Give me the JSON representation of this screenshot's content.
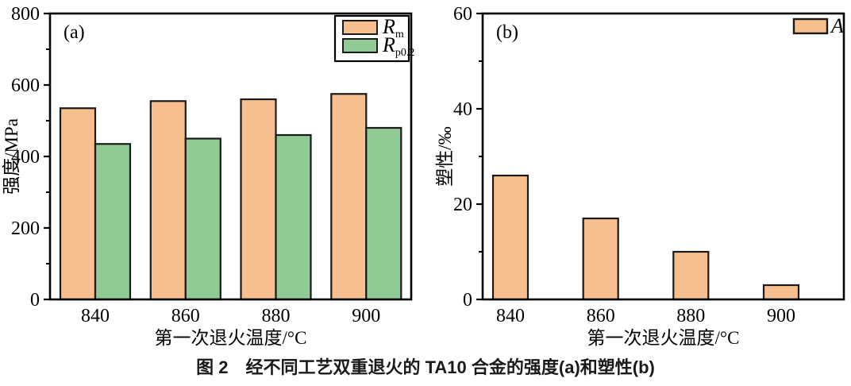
{
  "caption": "图 2　经不同工艺双重退火的 TA10 合金的强度(a)和塑性(b)",
  "colors": {
    "orange_fill": "#F7BE8E",
    "green_fill": "#90CA94",
    "bar_stroke": "#1a1a1a",
    "axis_stroke": "#000000",
    "text": "#000000"
  },
  "chart_data": [
    {
      "type": "bar",
      "panel_label": "(a)",
      "categories": [
        "840",
        "860",
        "880",
        "900"
      ],
      "series": [
        {
          "name": "Rm",
          "legend_main": "R",
          "legend_sub": "m",
          "color": "#F7BE8E",
          "values": [
            535,
            555,
            560,
            575
          ]
        },
        {
          "name": "Rp0.2",
          "legend_main": "R",
          "legend_sub": "p0.2",
          "color": "#90CA94",
          "values": [
            435,
            450,
            460,
            480
          ]
        }
      ],
      "xlabel": "第一次退火温度/°C",
      "ylabel": "强度/MPa",
      "ylim": [
        0,
        800
      ],
      "yticks": [
        0,
        200,
        400,
        600,
        800
      ],
      "minor_yticks": [
        100,
        300,
        500,
        700
      ],
      "legend_position": "top-right",
      "legend_frame": true,
      "grid": false
    },
    {
      "type": "bar",
      "panel_label": "(b)",
      "categories": [
        "840",
        "860",
        "880",
        "900"
      ],
      "series": [
        {
          "name": "A",
          "legend_main": "A",
          "legend_sub": "",
          "color": "#F7BE8E",
          "values": [
            26,
            17,
            10,
            3
          ]
        }
      ],
      "xlabel": "第一次退火温度/°C",
      "ylabel": "塑性/‰",
      "ylim": [
        0,
        60
      ],
      "yticks": [
        0,
        20,
        40,
        60
      ],
      "minor_yticks": [
        10,
        30,
        50
      ],
      "legend_position": "top-right",
      "legend_frame": false,
      "grid": false
    }
  ]
}
